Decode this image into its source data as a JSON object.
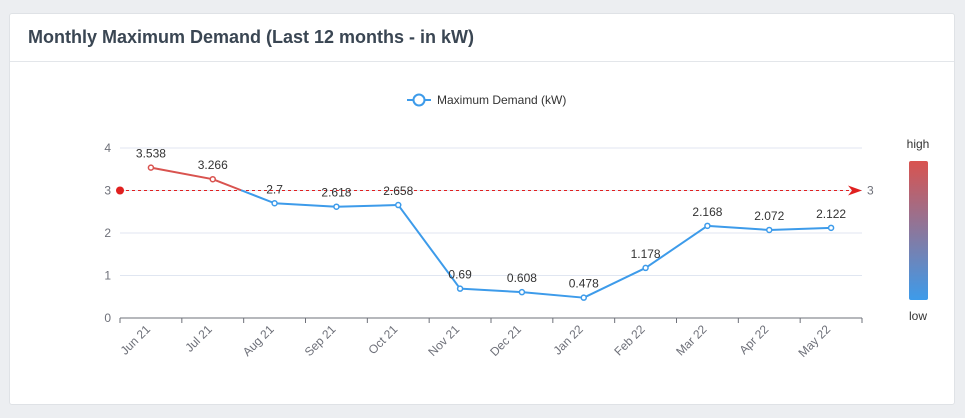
{
  "header": {
    "title": "Monthly Maximum Demand (Last 12 months - in kW)"
  },
  "legend": {
    "series_name": "Maximum Demand (kW)"
  },
  "visual_map": {
    "high_label": "high",
    "low_label": "low",
    "high_color": "#d9534f",
    "low_color": "#3d9bea"
  },
  "markline": {
    "value": 3,
    "label": "3",
    "color": "#e0201f"
  },
  "colors": {
    "line_low": "#3d9bea",
    "line_high": "#d9534f",
    "axis": "#6e7079",
    "grid": "#e0e6f1"
  },
  "chart_data": {
    "type": "line",
    "categories": [
      "Jun 21",
      "Jul 21",
      "Aug 21",
      "Sep 21",
      "Oct 21",
      "Nov 21",
      "Dec 21",
      "Jan 22",
      "Feb 22",
      "Mar 22",
      "Apr 22",
      "May 22"
    ],
    "series": [
      {
        "name": "Maximum Demand (kW)",
        "values": [
          3.538,
          3.266,
          2.7,
          2.618,
          2.658,
          0.69,
          0.608,
          0.478,
          1.178,
          2.168,
          2.072,
          2.122
        ]
      }
    ],
    "y_ticks": [
      "0",
      "1",
      "2",
      "3",
      "4"
    ],
    "ylim": [
      0,
      4
    ],
    "threshold": 3,
    "grid": true,
    "legend_position": "top-center"
  }
}
